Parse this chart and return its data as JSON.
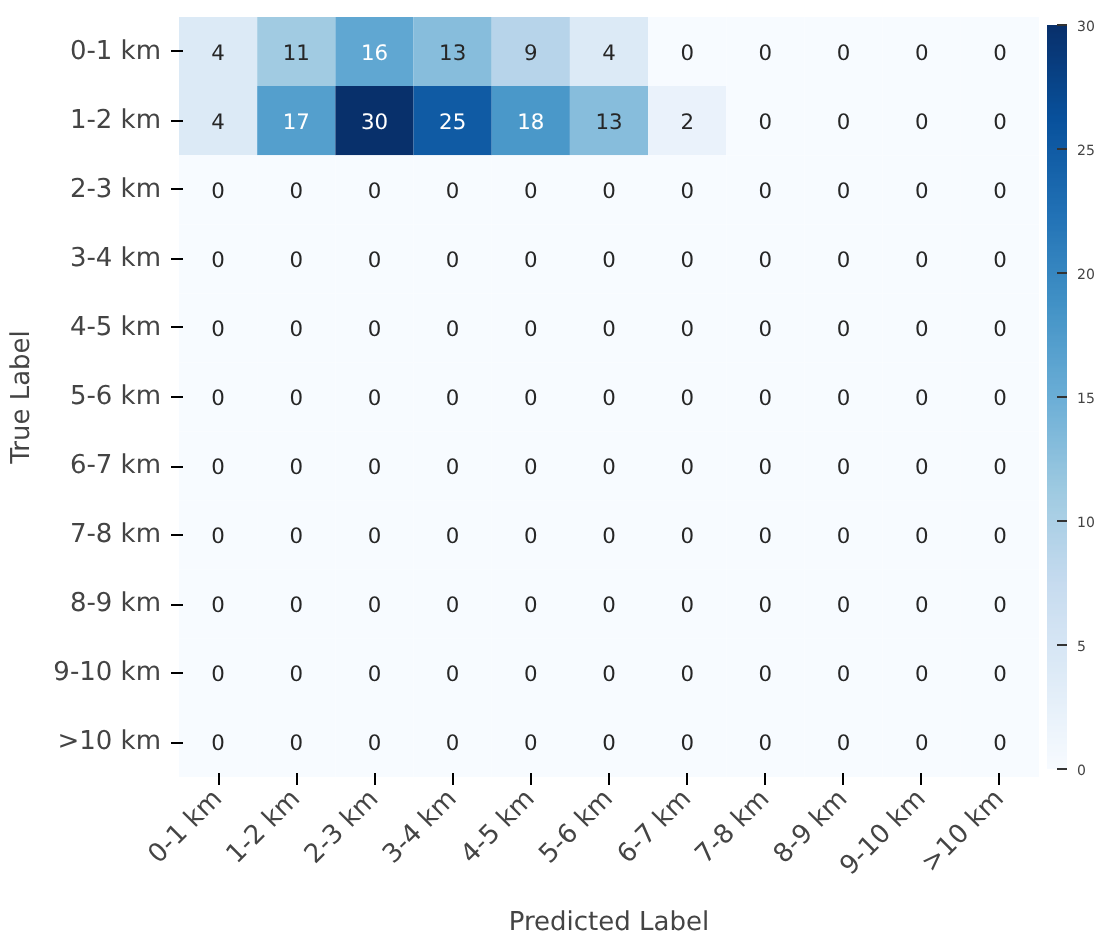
{
  "chart_data": {
    "type": "heatmap",
    "xlabel": "Predicted Label",
    "ylabel": "True Label",
    "categories": [
      "0-1 km",
      "1-2 km",
      "2-3 km",
      "3-4 km",
      "4-5 km",
      "5-6 km",
      "6-7 km",
      "7-8 km",
      "8-9 km",
      "9-10 km",
      ">10 km"
    ],
    "y_categories": [
      "0-1 km",
      "1-2 km",
      "2-3 km",
      "3-4 km",
      "4-5 km",
      "5-6 km",
      "6-7 km",
      "7-8 km",
      "8-9 km",
      "9-10 km",
      ">10 km"
    ],
    "cells": [
      [
        4,
        11,
        16,
        13,
        9,
        4,
        0,
        0,
        0,
        0,
        0
      ],
      [
        4,
        17,
        30,
        25,
        18,
        13,
        2,
        0,
        0,
        0,
        0
      ],
      [
        0,
        0,
        0,
        0,
        0,
        0,
        0,
        0,
        0,
        0,
        0
      ],
      [
        0,
        0,
        0,
        0,
        0,
        0,
        0,
        0,
        0,
        0,
        0
      ],
      [
        0,
        0,
        0,
        0,
        0,
        0,
        0,
        0,
        0,
        0,
        0
      ],
      [
        0,
        0,
        0,
        0,
        0,
        0,
        0,
        0,
        0,
        0,
        0
      ],
      [
        0,
        0,
        0,
        0,
        0,
        0,
        0,
        0,
        0,
        0,
        0
      ],
      [
        0,
        0,
        0,
        0,
        0,
        0,
        0,
        0,
        0,
        0,
        0
      ],
      [
        0,
        0,
        0,
        0,
        0,
        0,
        0,
        0,
        0,
        0,
        0
      ],
      [
        0,
        0,
        0,
        0,
        0,
        0,
        0,
        0,
        0,
        0,
        0
      ],
      [
        0,
        0,
        0,
        0,
        0,
        0,
        0,
        0,
        0,
        0,
        0
      ]
    ],
    "data_labels": true,
    "clim": [
      0,
      30
    ],
    "cticks": [
      0,
      5,
      10,
      15,
      20,
      25,
      30
    ]
  }
}
